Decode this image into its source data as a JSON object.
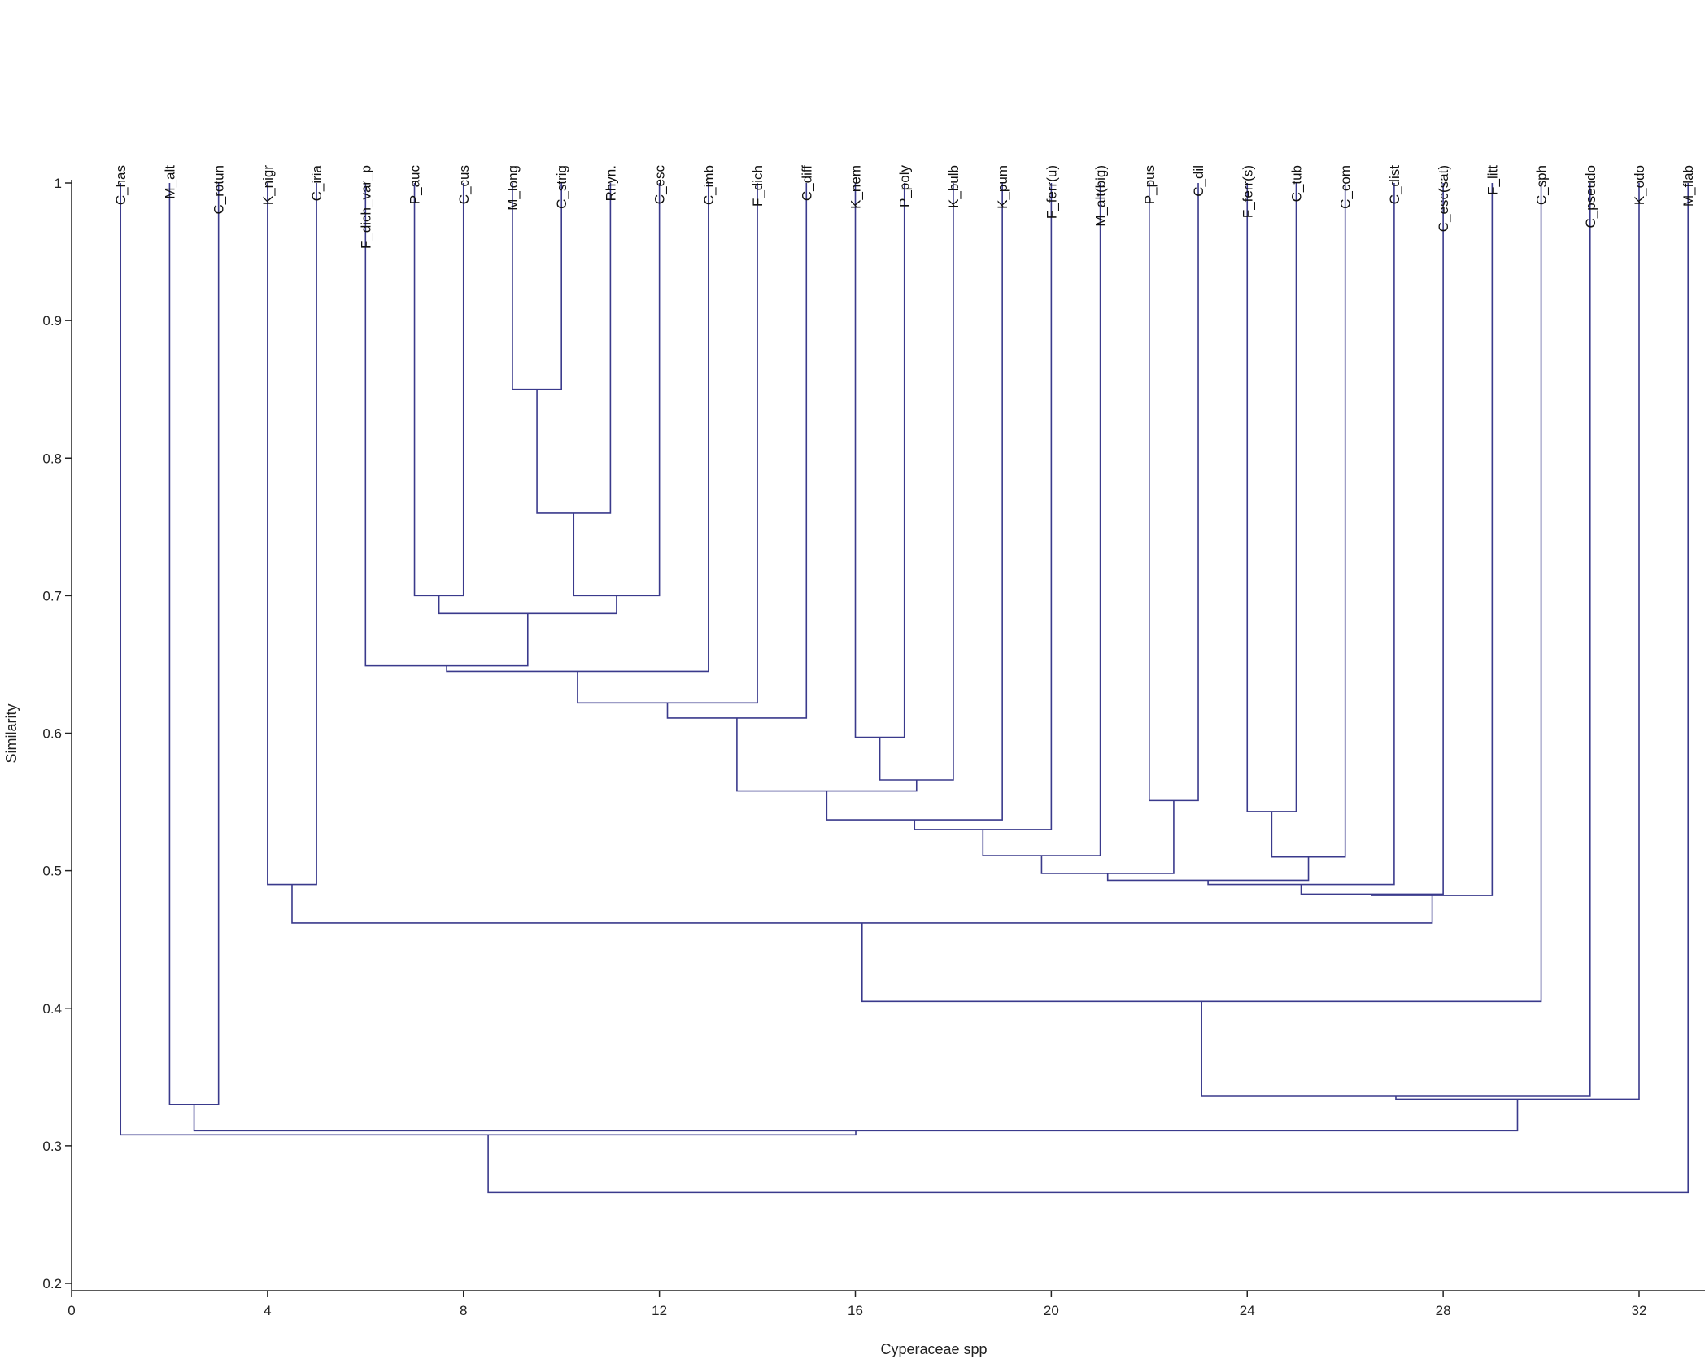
{
  "chart_data": {
    "type": "dendrogram",
    "title": "",
    "xlabel": "Cyperaceae spp",
    "ylabel": "Similarity",
    "xlim": [
      0,
      33.35
    ],
    "ylim": [
      0.195,
      1.0
    ],
    "xticks": [
      0,
      4,
      8,
      12,
      16,
      20,
      24,
      28,
      32
    ],
    "yticks": [
      0.2,
      0.3,
      0.4,
      0.5,
      0.6,
      0.7,
      0.8,
      0.9,
      1
    ],
    "grid": false,
    "line_color": "#3a3a8c",
    "leaves": [
      "C_has",
      "M_alt",
      "C_rotun",
      "K_nigr",
      "C_iria",
      "F_dich_var_p",
      "P_auc",
      "C_cus",
      "M_long",
      "C_strig",
      "Rhyn.",
      "C_esc",
      "C_imb",
      "F_dich",
      "C_diff",
      "K_nem",
      "P_poly",
      "K_bulb",
      "K_pum",
      "F_ferr(u)",
      "M_alt(big)",
      "P_pus",
      "C_dil",
      "F_ferr(s)",
      "C_tub",
      "C_com",
      "C_dist",
      "C_esc(sat)",
      "F_litt",
      "C_sph",
      "C_pseudo",
      "K_odo",
      "M_flab"
    ],
    "merges": [
      [
        8,
        9,
        0.85
      ],
      [
        33,
        10,
        0.76
      ],
      [
        34,
        11,
        0.7
      ],
      [
        6,
        7,
        0.7
      ],
      [
        36,
        35,
        0.687
      ],
      [
        5,
        37,
        0.649
      ],
      [
        38,
        12,
        0.645
      ],
      [
        39,
        13,
        0.622
      ],
      [
        40,
        14,
        0.611
      ],
      [
        15,
        16,
        0.597
      ],
      [
        42,
        17,
        0.566
      ],
      [
        41,
        43,
        0.558
      ],
      [
        44,
        18,
        0.537
      ],
      [
        45,
        19,
        0.53
      ],
      [
        46,
        20,
        0.511
      ],
      [
        21,
        22,
        0.551
      ],
      [
        47,
        48,
        0.498
      ],
      [
        23,
        24,
        0.543
      ],
      [
        50,
        25,
        0.51
      ],
      [
        49,
        51,
        0.493
      ],
      [
        52,
        26,
        0.49
      ],
      [
        53,
        27,
        0.483
      ],
      [
        54,
        28,
        0.482
      ],
      [
        3,
        4,
        0.49
      ],
      [
        56,
        55,
        0.462
      ],
      [
        57,
        29,
        0.405
      ],
      [
        58,
        30,
        0.336
      ],
      [
        59,
        31,
        0.334
      ],
      [
        1,
        2,
        0.33
      ],
      [
        61,
        60,
        0.311
      ],
      [
        0,
        62,
        0.308
      ],
      [
        63,
        32,
        0.266
      ]
    ]
  }
}
